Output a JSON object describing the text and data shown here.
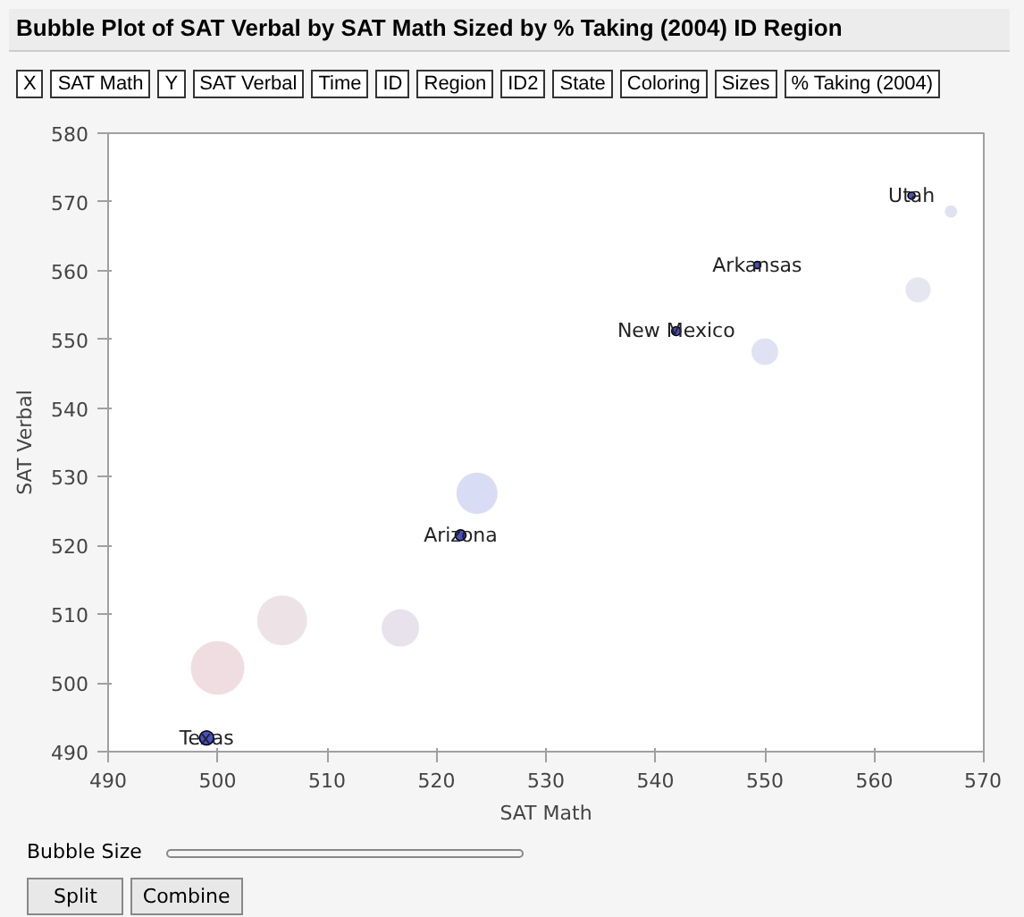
{
  "chart_data": {
    "type": "bubble",
    "title": "Bubble Plot of SAT Verbal by SAT Math Sized by % Taking (2004) ID Region",
    "xlabel": "SAT Math",
    "ylabel": "SAT Verbal",
    "xlim": [
      490,
      570
    ],
    "xticks": [
      490,
      500,
      510,
      520,
      530,
      540,
      550,
      560,
      570
    ],
    "ylim": [
      490,
      580
    ],
    "yticks": [
      490,
      500,
      510,
      520,
      530,
      540,
      550,
      560,
      570,
      580
    ],
    "series": [
      {
        "x": [
          500.0,
          505.9,
          516.7,
          523.7,
          550.0,
          564.0,
          567.0
        ],
        "values": [
          502.2,
          509.1,
          508.0,
          527.6,
          548.2,
          557.2,
          568.6
        ],
        "sizes": [
          1,
          0.87,
          0.49,
          0.59,
          0.25,
          0.22,
          0.054
        ],
        "colors": [
          "#f0dde1",
          "#ede3e6",
          "#e8e2ec",
          "#d8ddf5",
          "#e0e2f4",
          "#e6e6f0",
          "#e0e2f2"
        ]
      },
      {
        "x": [
          499.0,
          522.2,
          541.9,
          549.3,
          563.4
        ],
        "values": [
          492.0,
          521.5,
          551.2,
          560.8,
          570.9
        ],
        "sizes": [
          0.07,
          0.04,
          0.028,
          0.018,
          0.018
        ],
        "color": "#4650c8"
      }
    ],
    "annotations": [
      {
        "text": "Texas",
        "x": 499.0,
        "y": 492.0
      },
      {
        "text": "Arizona",
        "x": 522.2,
        "y": 521.5
      },
      {
        "text": "New Mexico",
        "x": 541.9,
        "y": 551.2
      },
      {
        "text": "Arkansas",
        "x": 549.3,
        "y": 560.8
      },
      {
        "text": "Utah",
        "x": 563.4,
        "y": 570.9
      },
      "X",
      "SAT Math",
      "Y",
      "SAT Verbal",
      "Time",
      "ID",
      "Region",
      "ID2",
      "State",
      "Coloring",
      "Sizes",
      "% Taking (2004)",
      "Bubble Size",
      "Split",
      "Combine"
    ]
  }
}
